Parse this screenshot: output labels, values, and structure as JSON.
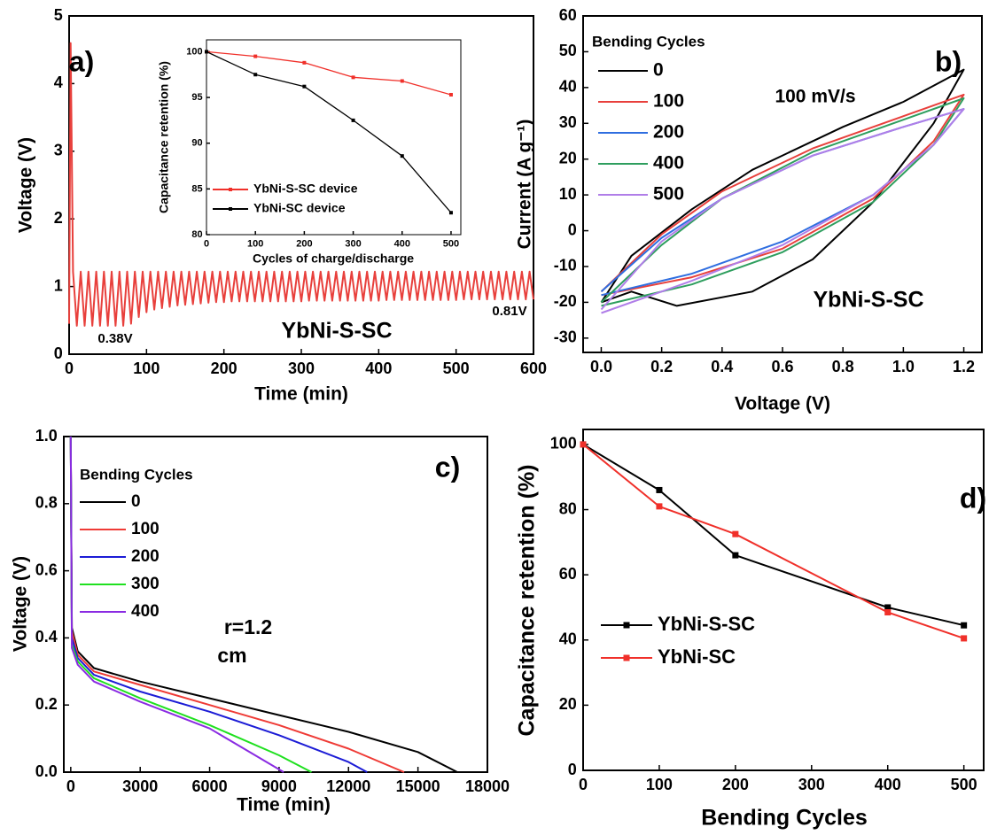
{
  "chart_data": [
    {
      "type": "line",
      "xlabel": "Time (min)",
      "ylabel": "Voltage (V)",
      "xlim": [
        0,
        600
      ],
      "ylim": [
        0,
        5
      ],
      "xticks": [
        0,
        100,
        200,
        300,
        400,
        500,
        600
      ],
      "yticks": [
        0,
        1,
        2,
        3,
        4,
        5
      ],
      "x": [
        0,
        2,
        5,
        10,
        15,
        20,
        25,
        30,
        35,
        40,
        45,
        50,
        55,
        60,
        65,
        70,
        75,
        80,
        85,
        90,
        95,
        100,
        105,
        110,
        115,
        120,
        125,
        130,
        135,
        140,
        145,
        150,
        155,
        160,
        165,
        170,
        175,
        180,
        185,
        190,
        195,
        200,
        205,
        210,
        215,
        220,
        225,
        230,
        235,
        240,
        245,
        250,
        255,
        260,
        265,
        270,
        275,
        280,
        285,
        290,
        295,
        300,
        305,
        310,
        315,
        320,
        325,
        330,
        335,
        340,
        345,
        350,
        355,
        360,
        365,
        370,
        375,
        380,
        385,
        390,
        395,
        400,
        405,
        410,
        415,
        420,
        425,
        430,
        435,
        440,
        445,
        450,
        455,
        460,
        465,
        470,
        475,
        480,
        485,
        490,
        495,
        500,
        505,
        510,
        515,
        520,
        525,
        530,
        535,
        540,
        545,
        550,
        555,
        560,
        565,
        570,
        575,
        580,
        585,
        590,
        595,
        600
      ],
      "series": [
        {
          "color": "#e8403c",
          "values": [
            0.45,
            4.6,
            1.22,
            0.42,
            1.22,
            0.42,
            1.22,
            0.42,
            1.22,
            0.42,
            1.22,
            0.42,
            1.22,
            0.42,
            1.22,
            0.42,
            1.22,
            0.45,
            1.22,
            0.55,
            1.22,
            0.62,
            1.22,
            0.66,
            1.22,
            0.68,
            1.22,
            0.7,
            1.22,
            0.72,
            1.22,
            0.73,
            1.22,
            0.74,
            1.22,
            0.75,
            1.22,
            0.76,
            1.22,
            0.77,
            1.22,
            0.77,
            1.22,
            0.78,
            1.22,
            0.78,
            1.22,
            0.78,
            1.22,
            0.78,
            1.22,
            0.78,
            1.22,
            0.78,
            1.22,
            0.78,
            1.22,
            0.78,
            1.22,
            0.78,
            1.22,
            0.78,
            1.22,
            0.79,
            1.22,
            0.79,
            1.22,
            0.79,
            1.22,
            0.79,
            1.22,
            0.79,
            1.22,
            0.79,
            1.22,
            0.79,
            1.22,
            0.79,
            1.22,
            0.79,
            1.22,
            0.79,
            1.22,
            0.8,
            1.22,
            0.8,
            1.22,
            0.8,
            1.22,
            0.8,
            1.22,
            0.8,
            1.22,
            0.8,
            1.22,
            0.8,
            1.22,
            0.8,
            1.22,
            0.8,
            1.22,
            0.8,
            1.22,
            0.81,
            1.22,
            0.81,
            1.22,
            0.81,
            1.22,
            0.81,
            1.22,
            0.81,
            1.22,
            0.81,
            1.22,
            0.81,
            1.22,
            0.81,
            1.22,
            0.81,
            1.22,
            0.81
          ]
        }
      ],
      "annotations": [
        "a)",
        "0.38V",
        "0.81V",
        "YbNi-S-SC"
      ]
    },
    {
      "type": "line",
      "marker": "square",
      "xlabel": "Cycles of charge/discharge",
      "ylabel": "Capacitance retention (%)",
      "xlim": [
        0,
        520
      ],
      "ylim": [
        80,
        101.3
      ],
      "xticks": [
        0,
        100,
        200,
        300,
        400,
        500
      ],
      "yticks": [
        80,
        85,
        90,
        95,
        100
      ],
      "x": [
        0,
        100,
        200,
        300,
        400,
        500
      ],
      "series": [
        {
          "name": "YbNi-S-SC device",
          "color": "#f0302a",
          "values": [
            100,
            99.5,
            98.8,
            97.2,
            96.8,
            95.3
          ]
        },
        {
          "name": "YbNi-SC device",
          "color": "#000000",
          "values": [
            100,
            97.5,
            96.2,
            92.5,
            88.6,
            82.4
          ]
        }
      ]
    },
    {
      "type": "line",
      "xlabel": "Voltage (V)",
      "ylabel": "Current (A g⁻¹)",
      "legend_title": "Bending Cycles",
      "xlim": [
        -0.06,
        1.26
      ],
      "ylim": [
        -34,
        60
      ],
      "xticks": [
        {
          "value": 0,
          "label": "0.0"
        },
        0.2,
        0.4,
        0.6,
        0.8,
        {
          "value": 1,
          "label": "1.0"
        },
        1.2
      ],
      "yticks": [
        -30,
        -20,
        -10,
        0,
        10,
        20,
        30,
        40,
        50,
        60
      ],
      "series": [
        {
          "name": "0",
          "color": "#000000",
          "x": [
            0,
            0.1,
            0.25,
            0.5,
            0.7,
            0.9,
            1.1,
            1.2,
            1.0,
            0.8,
            0.5,
            0.3,
            0.1,
            0
          ],
          "values": [
            -20,
            -17,
            -21,
            -17,
            -8,
            8,
            30,
            45,
            36,
            29,
            17,
            6,
            -7,
            -20
          ]
        },
        {
          "name": "100",
          "color": "#e8403c",
          "x": [
            0,
            0.3,
            0.6,
            0.9,
            1.1,
            1.2,
            1.0,
            0.7,
            0.4,
            0.2,
            0
          ],
          "values": [
            -18,
            -13,
            -5,
            9,
            25,
            38,
            32,
            23,
            11,
            -1,
            -17
          ]
        },
        {
          "name": "200",
          "color": "#2f6ee0",
          "x": [
            0,
            0.3,
            0.6,
            0.9,
            1.1,
            1.2,
            1.0,
            0.7,
            0.4,
            0.2,
            0
          ],
          "values": [
            -18,
            -12,
            -3,
            10,
            24,
            34,
            29,
            21,
            9,
            -2,
            -17
          ]
        },
        {
          "name": "400",
          "color": "#2e9e5e",
          "x": [
            0,
            0.3,
            0.6,
            0.9,
            1.1,
            1.2,
            1.0,
            0.7,
            0.4,
            0.2,
            0
          ],
          "values": [
            -21,
            -15,
            -6,
            8,
            24,
            37,
            31,
            22,
            9,
            -4,
            -20
          ]
        },
        {
          "name": "500",
          "color": "#b07ee8",
          "x": [
            0,
            0.3,
            0.6,
            0.9,
            1.1,
            1.2,
            1.0,
            0.7,
            0.4,
            0.2,
            0
          ],
          "values": [
            -23,
            -14,
            -4,
            10,
            24,
            34,
            29,
            21,
            9,
            -3,
            -22
          ]
        }
      ],
      "annotations": [
        "b)",
        "100 mV/s",
        "YbNi-S-SC"
      ]
    },
    {
      "type": "line",
      "xlabel": "Time (min)",
      "ylabel": "Voltage (V)",
      "legend_title": "Bending Cycles",
      "xlim": [
        -300,
        18000
      ],
      "ylim": [
        0,
        1
      ],
      "xticks": [
        0,
        3000,
        6000,
        9000,
        12000,
        15000,
        18000
      ],
      "yticks": [
        {
          "value": 0,
          "label": "0.0"
        },
        0.2,
        0.4,
        0.6,
        0.8,
        {
          "value": 1,
          "label": "1.0"
        }
      ],
      "series": [
        {
          "name": "0",
          "color": "#000000",
          "x": [
            0,
            50,
            300,
            1000,
            3000,
            6000,
            9000,
            12000,
            15000,
            16700
          ],
          "values": [
            1,
            0.43,
            0.36,
            0.31,
            0.27,
            0.22,
            0.17,
            0.12,
            0.06,
            0
          ]
        },
        {
          "name": "100",
          "color": "#ef3b36",
          "x": [
            0,
            50,
            300,
            1000,
            3000,
            6000,
            9000,
            12000,
            14400
          ],
          "values": [
            1,
            0.42,
            0.35,
            0.3,
            0.26,
            0.2,
            0.14,
            0.07,
            0
          ]
        },
        {
          "name": "200",
          "color": "#1c1cd6",
          "x": [
            0,
            50,
            300,
            1000,
            3000,
            6000,
            9000,
            12000,
            12800
          ],
          "values": [
            1,
            0.4,
            0.34,
            0.29,
            0.24,
            0.18,
            0.11,
            0.03,
            0
          ]
        },
        {
          "name": "300",
          "color": "#1fe01f",
          "x": [
            0,
            50,
            300,
            1000,
            3000,
            6000,
            9000,
            10400
          ],
          "values": [
            1,
            0.38,
            0.33,
            0.28,
            0.22,
            0.14,
            0.05,
            0
          ]
        },
        {
          "name": "400",
          "color": "#8a2be2",
          "x": [
            0,
            50,
            300,
            1000,
            3000,
            6000,
            9200
          ],
          "values": [
            1,
            0.37,
            0.32,
            0.27,
            0.21,
            0.13,
            0
          ]
        }
      ],
      "annotations": [
        "c)",
        "r=1.2",
        "cm"
      ]
    },
    {
      "type": "line",
      "marker": "square",
      "xlabel": "Bending Cycles",
      "ylabel": "Capacitance retention (%)",
      "xlim": [
        0,
        526
      ],
      "ylim": [
        0,
        104.6
      ],
      "xticks": [
        0,
        100,
        200,
        300,
        400,
        500
      ],
      "yticks": [
        0,
        20,
        40,
        60,
        80,
        100
      ],
      "x": [
        0,
        100,
        200,
        400,
        500
      ],
      "series": [
        {
          "name": "YbNi-S-SC",
          "color": "#000000",
          "values": [
            100,
            86,
            66,
            50,
            44.5
          ]
        },
        {
          "name": "YbNi-SC",
          "color": "#f0302a",
          "values": [
            100,
            81,
            72.5,
            48.5,
            40.5
          ]
        }
      ],
      "annotations": [
        "d)"
      ]
    }
  ]
}
